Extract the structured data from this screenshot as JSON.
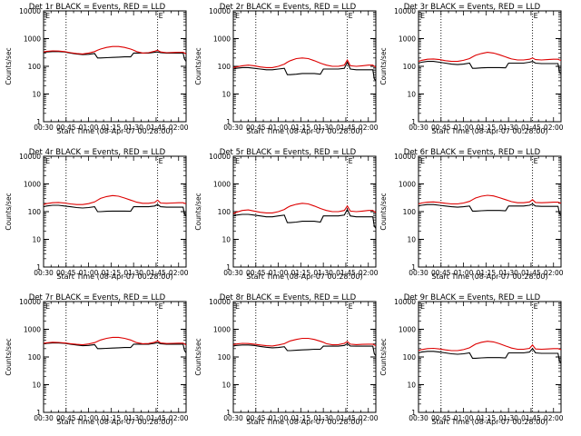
{
  "colors": {
    "events": "#000000",
    "lld": "#dd0000",
    "axis": "#000000",
    "marker": "#000000"
  },
  "common": {
    "xlabel": "Start Time (08-Apr-07 00:28:00)",
    "ylabel": "Counts/sec",
    "xticks": [
      "00:30",
      "00:45",
      "01:00",
      "01:15",
      "01:30",
      "01:45",
      "02:00"
    ],
    "yticks": [
      "1",
      "10",
      "100",
      "1000",
      "10000"
    ],
    "corner_marks": [
      "E",
      "E"
    ]
  },
  "chart_data": [
    {
      "type": "line",
      "title": "Det 1r BLACK = Events, RED = LLD",
      "yscale": "log",
      "ylim": [
        1,
        10000
      ],
      "xlim_minutes": [
        30,
        125
      ],
      "x_minutes": [
        30,
        32,
        36,
        40,
        44,
        48,
        52,
        56,
        60,
        64,
        66,
        68,
        72,
        76,
        80,
        84,
        88,
        90,
        92,
        96,
        100,
        104,
        106,
        108,
        112,
        116,
        120,
        123,
        124,
        125
      ],
      "series": [
        {
          "name": "Events",
          "values": [
            320,
            330,
            340,
            340,
            330,
            300,
            280,
            265,
            270,
            290,
            200,
            200,
            205,
            210,
            215,
            220,
            220,
            300,
            300,
            300,
            300,
            320,
            330,
            310,
            300,
            300,
            300,
            300,
            180,
            150
          ]
        },
        {
          "name": "LLD",
          "values": [
            330,
            345,
            360,
            355,
            340,
            310,
            290,
            280,
            300,
            340,
            380,
            420,
            480,
            520,
            520,
            480,
            420,
            380,
            340,
            300,
            310,
            350,
            380,
            330,
            310,
            315,
            320,
            320,
            300,
            280
          ]
        }
      ]
    },
    {
      "type": "line",
      "title": "Det 2r BLACK = Events, RED = LLD",
      "yscale": "log",
      "ylim": [
        1,
        10000
      ],
      "xlim_minutes": [
        30,
        125
      ],
      "x_minutes": [
        30,
        32,
        36,
        40,
        44,
        48,
        52,
        56,
        60,
        64,
        66,
        68,
        72,
        76,
        80,
        84,
        88,
        90,
        92,
        96,
        100,
        104,
        106,
        108,
        112,
        116,
        120,
        123,
        124,
        125
      ],
      "series": [
        {
          "name": "Events",
          "values": [
            80,
            85,
            90,
            90,
            85,
            80,
            75,
            75,
            80,
            85,
            50,
            50,
            52,
            55,
            55,
            55,
            52,
            80,
            80,
            80,
            80,
            85,
            140,
            80,
            75,
            75,
            75,
            75,
            35,
            30
          ]
        },
        {
          "name": "LLD",
          "values": [
            90,
            95,
            105,
            110,
            105,
            95,
            90,
            90,
            100,
            120,
            140,
            160,
            190,
            200,
            190,
            160,
            130,
            120,
            110,
            100,
            100,
            110,
            170,
            105,
            100,
            105,
            110,
            110,
            100,
            95
          ]
        }
      ]
    },
    {
      "type": "line",
      "title": "Det 3r BLACK = Events, RED = LLD",
      "yscale": "log",
      "ylim": [
        1,
        10000
      ],
      "xlim_minutes": [
        30,
        125
      ],
      "x_minutes": [
        30,
        32,
        36,
        40,
        44,
        48,
        52,
        56,
        60,
        64,
        66,
        68,
        72,
        76,
        80,
        84,
        88,
        90,
        92,
        96,
        100,
        104,
        106,
        108,
        112,
        116,
        120,
        123,
        124,
        125
      ],
      "series": [
        {
          "name": "Events",
          "values": [
            130,
            140,
            150,
            150,
            140,
            130,
            120,
            115,
            120,
            130,
            85,
            85,
            88,
            90,
            90,
            90,
            88,
            130,
            130,
            130,
            130,
            140,
            150,
            130,
            125,
            125,
            125,
            125,
            60,
            55
          ]
        },
        {
          "name": "LLD",
          "values": [
            150,
            165,
            180,
            185,
            175,
            160,
            150,
            150,
            165,
            190,
            220,
            250,
            290,
            320,
            300,
            260,
            220,
            200,
            185,
            170,
            170,
            180,
            200,
            175,
            170,
            175,
            180,
            180,
            170,
            165
          ]
        }
      ]
    },
    {
      "type": "line",
      "title": "Det 4r BLACK = Events, RED = LLD",
      "yscale": "log",
      "ylim": [
        1,
        10000
      ],
      "xlim_minutes": [
        30,
        125
      ],
      "x_minutes": [
        30,
        32,
        36,
        40,
        44,
        48,
        52,
        56,
        60,
        64,
        66,
        68,
        72,
        76,
        80,
        84,
        88,
        90,
        92,
        96,
        100,
        104,
        106,
        108,
        112,
        116,
        120,
        123,
        124,
        125
      ],
      "series": [
        {
          "name": "Events",
          "values": [
            150,
            160,
            170,
            170,
            160,
            150,
            140,
            135,
            140,
            150,
            100,
            100,
            103,
            105,
            105,
            105,
            103,
            150,
            150,
            150,
            150,
            160,
            180,
            150,
            145,
            145,
            145,
            145,
            80,
            70
          ]
        },
        {
          "name": "LLD",
          "values": [
            180,
            195,
            210,
            215,
            205,
            190,
            180,
            180,
            195,
            225,
            260,
            300,
            350,
            380,
            360,
            310,
            260,
            240,
            220,
            200,
            200,
            215,
            260,
            205,
            200,
            205,
            210,
            210,
            200,
            195
          ]
        }
      ]
    },
    {
      "type": "line",
      "title": "Det 5r BLACK = Events, RED = LLD",
      "yscale": "log",
      "ylim": [
        1,
        10000
      ],
      "xlim_minutes": [
        30,
        125
      ],
      "x_minutes": [
        30,
        32,
        36,
        40,
        44,
        48,
        52,
        56,
        60,
        64,
        66,
        68,
        72,
        76,
        80,
        84,
        88,
        90,
        92,
        96,
        100,
        104,
        106,
        108,
        112,
        116,
        120,
        123,
        124,
        125
      ],
      "series": [
        {
          "name": "Events",
          "values": [
            70,
            75,
            80,
            80,
            75,
            70,
            65,
            65,
            70,
            75,
            40,
            40,
            42,
            45,
            45,
            45,
            42,
            70,
            70,
            70,
            70,
            75,
            120,
            70,
            65,
            65,
            65,
            65,
            30,
            25
          ]
        },
        {
          "name": "LLD",
          "values": [
            85,
            95,
            110,
            115,
            105,
            95,
            90,
            90,
            100,
            120,
            140,
            160,
            185,
            200,
            190,
            160,
            130,
            120,
            110,
            100,
            100,
            110,
            160,
            105,
            100,
            105,
            110,
            110,
            100,
            95
          ]
        }
      ]
    },
    {
      "type": "line",
      "title": "Det 6r BLACK = Events, RED = LLD",
      "yscale": "log",
      "ylim": [
        1,
        10000
      ],
      "xlim_minutes": [
        30,
        125
      ],
      "x_minutes": [
        30,
        32,
        36,
        40,
        44,
        48,
        52,
        56,
        60,
        64,
        66,
        68,
        72,
        76,
        80,
        84,
        88,
        90,
        92,
        96,
        100,
        104,
        106,
        108,
        112,
        116,
        120,
        123,
        124,
        125
      ],
      "series": [
        {
          "name": "Events",
          "values": [
            160,
            170,
            180,
            180,
            170,
            160,
            150,
            145,
            150,
            160,
            105,
            105,
            108,
            110,
            110,
            110,
            108,
            160,
            160,
            160,
            160,
            170,
            190,
            160,
            155,
            155,
            155,
            155,
            85,
            75
          ]
        },
        {
          "name": "LLD",
          "values": [
            190,
            205,
            220,
            225,
            215,
            200,
            190,
            190,
            205,
            235,
            270,
            310,
            360,
            390,
            370,
            320,
            270,
            250,
            230,
            210,
            210,
            225,
            270,
            215,
            210,
            215,
            220,
            220,
            210,
            205
          ]
        }
      ]
    },
    {
      "type": "line",
      "title": "Det 7r BLACK = Events, RED = LLD",
      "yscale": "log",
      "ylim": [
        1,
        10000
      ],
      "xlim_minutes": [
        30,
        125
      ],
      "x_minutes": [
        30,
        32,
        36,
        40,
        44,
        48,
        52,
        56,
        60,
        64,
        66,
        68,
        72,
        76,
        80,
        84,
        88,
        90,
        92,
        96,
        100,
        104,
        106,
        108,
        112,
        116,
        120,
        123,
        124,
        125
      ],
      "series": [
        {
          "name": "Events",
          "values": [
            300,
            310,
            320,
            320,
            310,
            290,
            270,
            255,
            260,
            280,
            200,
            200,
            205,
            210,
            215,
            220,
            220,
            290,
            290,
            290,
            290,
            310,
            330,
            300,
            290,
            290,
            290,
            290,
            170,
            140
          ]
        },
        {
          "name": "LLD",
          "values": [
            310,
            325,
            340,
            335,
            320,
            300,
            285,
            275,
            295,
            330,
            370,
            410,
            470,
            510,
            510,
            470,
            410,
            370,
            330,
            300,
            305,
            340,
            380,
            320,
            305,
            310,
            315,
            315,
            295,
            275
          ]
        }
      ]
    },
    {
      "type": "line",
      "title": "Det 8r BLACK = Events, RED = LLD",
      "yscale": "log",
      "ylim": [
        1,
        10000
      ],
      "xlim_minutes": [
        30,
        125
      ],
      "x_minutes": [
        30,
        32,
        36,
        40,
        44,
        48,
        52,
        56,
        60,
        64,
        66,
        68,
        72,
        76,
        80,
        84,
        88,
        90,
        92,
        96,
        100,
        104,
        106,
        108,
        112,
        116,
        120,
        123,
        124,
        125
      ],
      "series": [
        {
          "name": "Events",
          "values": [
            250,
            260,
            270,
            270,
            260,
            240,
            225,
            215,
            220,
            235,
            170,
            170,
            175,
            180,
            185,
            190,
            190,
            245,
            245,
            245,
            245,
            260,
            300,
            250,
            245,
            245,
            245,
            245,
            130,
            110
          ]
        },
        {
          "name": "LLD",
          "values": [
            280,
            295,
            310,
            305,
            290,
            270,
            255,
            250,
            270,
            300,
            340,
            380,
            430,
            470,
            470,
            430,
            370,
            340,
            300,
            275,
            280,
            310,
            360,
            290,
            280,
            285,
            290,
            290,
            270,
            255
          ]
        }
      ]
    },
    {
      "type": "line",
      "title": "Det 9r BLACK = Events, RED = LLD",
      "yscale": "log",
      "ylim": [
        1,
        10000
      ],
      "xlim_minutes": [
        30,
        125
      ],
      "x_minutes": [
        30,
        32,
        36,
        40,
        44,
        48,
        52,
        56,
        60,
        64,
        66,
        68,
        72,
        76,
        80,
        84,
        88,
        90,
        92,
        96,
        100,
        104,
        106,
        108,
        112,
        116,
        120,
        123,
        124,
        125
      ],
      "series": [
        {
          "name": "Events",
          "values": [
            140,
            150,
            160,
            160,
            150,
            140,
            130,
            125,
            130,
            140,
            90,
            90,
            93,
            95,
            95,
            95,
            93,
            140,
            140,
            140,
            140,
            150,
            200,
            140,
            135,
            135,
            135,
            135,
            70,
            60
          ]
        },
        {
          "name": "LLD",
          "values": [
            170,
            185,
            200,
            205,
            195,
            180,
            170,
            170,
            185,
            215,
            250,
            290,
            340,
            370,
            350,
            300,
            250,
            230,
            210,
            190,
            190,
            205,
            270,
            195,
            190,
            195,
            200,
            200,
            190,
            185
          ]
        }
      ]
    }
  ]
}
